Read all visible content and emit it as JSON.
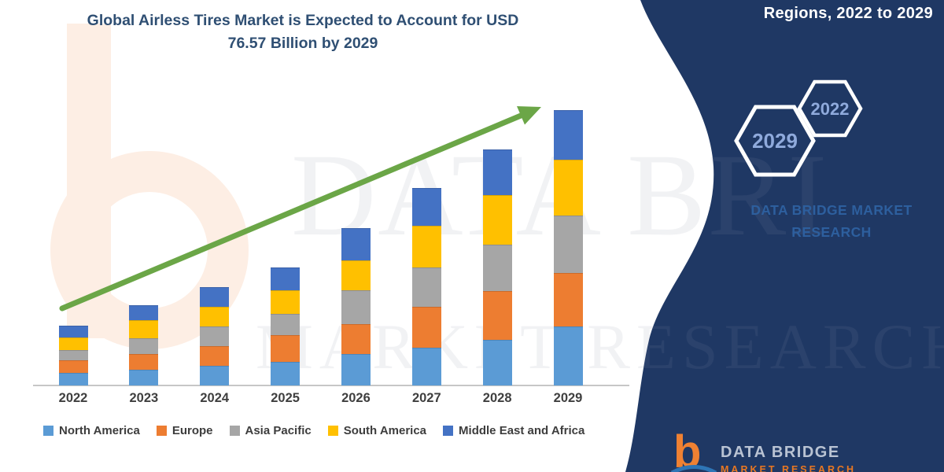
{
  "title": {
    "text": "Global Airless Tires Market is Expected to Account for USD 76.57 Billion by 2029"
  },
  "header": {
    "caption": "Regions, 2022 to 2029"
  },
  "side_panel": {
    "hexagons": [
      {
        "label": "2029"
      },
      {
        "label": "2022"
      }
    ],
    "brand_line1": "DATA BRIDGE MARKET",
    "brand_line2": "RESEARCH"
  },
  "watermark": {
    "line1": "DATA BRI",
    "line2": "MARKET RESEARCH",
    "logo_glyph": "b"
  },
  "footer": {
    "logo_glyph": "b",
    "brand": "DATA BRIDGE",
    "sub": "MARKET RESEARCH"
  },
  "colors": {
    "panel_navy": "#1f3864",
    "arrow_green": "#6ba647",
    "hex_stroke": "#ffffff",
    "hex_text": "#8faadc",
    "brand_text": "#2d5f9e",
    "title_text": "#2f4f73",
    "axis_line": "#c6c6c6",
    "footer_orange": "#ef8132",
    "footer_silver": "#b9c3d3",
    "watermark_peach": "#fdeee4"
  },
  "chart_data": {
    "type": "bar",
    "stacked": true,
    "title": "Global Airless Tires Market is Expected to Account for USD 76.57 Billion by 2029",
    "unit": "USD Billion",
    "xlabel": "",
    "ylabel": "",
    "ylim": [
      0,
      80
    ],
    "gridlines": false,
    "legend_position": "bottom",
    "annotations": [
      "green upward trend arrow from 2022 to 2029"
    ],
    "categories": [
      "2022",
      "2023",
      "2024",
      "2025",
      "2026",
      "2027",
      "2028",
      "2029"
    ],
    "series": [
      {
        "name": "North America",
        "color": "#5b9bd5",
        "values": [
          3.6,
          4.4,
          5.5,
          6.6,
          8.7,
          10.6,
          12.8,
          16.4
        ]
      },
      {
        "name": "Europe",
        "color": "#ed7d31",
        "values": [
          3.3,
          4.4,
          5.5,
          7.4,
          8.4,
          11.3,
          13.5,
          14.9
        ]
      },
      {
        "name": "Asia Pacific",
        "color": "#a6a6a6",
        "values": [
          3.0,
          4.4,
          5.5,
          5.9,
          9.4,
          10.9,
          12.8,
          15.9
        ]
      },
      {
        "name": "South America",
        "color": "#ffc000",
        "values": [
          3.5,
          5.0,
          5.5,
          6.6,
          8.4,
          11.6,
          13.9,
          15.7
        ]
      },
      {
        "name": "Middle East and Africa",
        "color": "#4472c4",
        "values": [
          3.2,
          4.2,
          5.3,
          6.4,
          8.9,
          10.5,
          12.6,
          13.7
        ]
      }
    ],
    "totals_estimated": [
      16.6,
      22.4,
      27.3,
      32.9,
      43.8,
      54.9,
      65.6,
      76.6
    ]
  }
}
